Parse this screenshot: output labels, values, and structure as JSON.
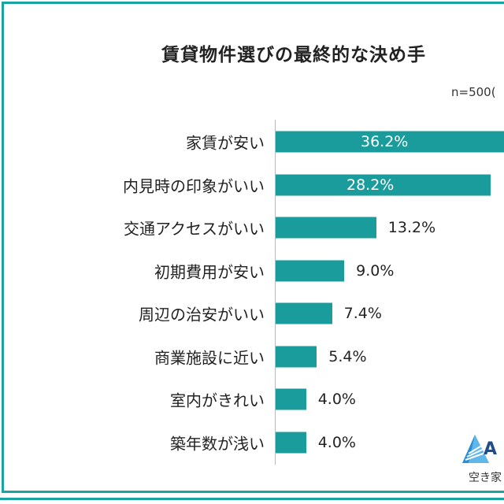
{
  "chart_data": {
    "type": "bar",
    "orientation": "horizontal",
    "title": "賃貸物件選びの最終的な決め手",
    "note": "n=500(",
    "categories": [
      "家賃が安い",
      "内見時の印象がいい",
      "交通アクセスがいい",
      "初期費用が安い",
      "周辺の治安がいい",
      "商業施設に近い",
      "室内がきれい",
      "築年数が浅い"
    ],
    "values": [
      36.2,
      28.2,
      13.2,
      9.0,
      7.4,
      5.4,
      4.0,
      4.0
    ],
    "labels": [
      "36.2%",
      "28.2%",
      "13.2%",
      "9.0%",
      "7.4%",
      "5.4%",
      "4.0%",
      "4.0%"
    ],
    "unit": "%",
    "bar_color": "#1a9c9c",
    "frame_color": "#1aa3a3",
    "grid": false
  },
  "logo": {
    "letter": "A",
    "text": "空き家"
  }
}
